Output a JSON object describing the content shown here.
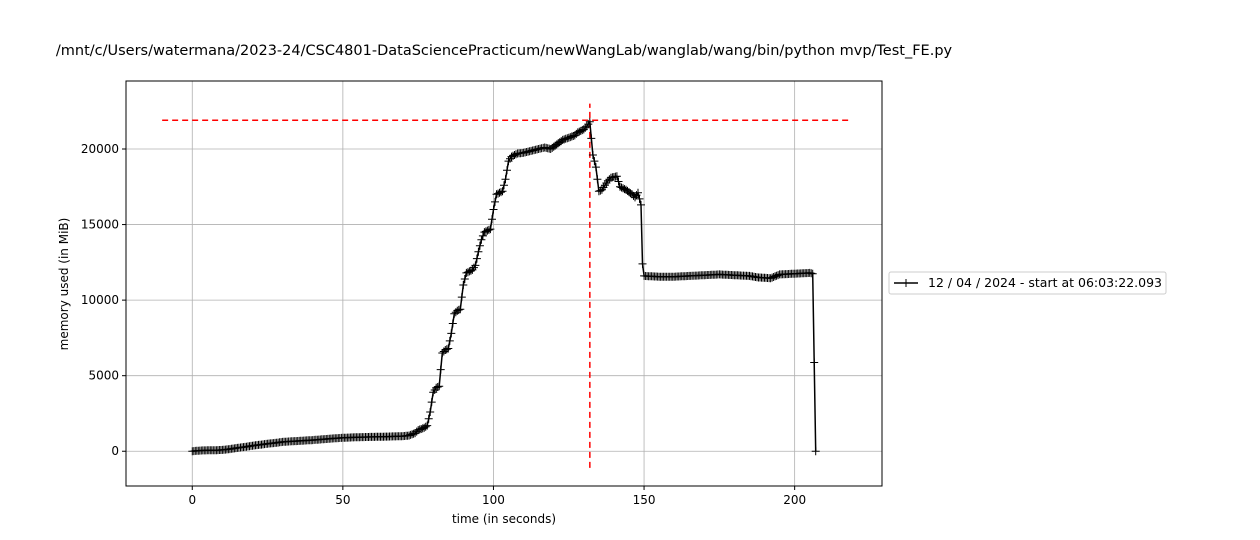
{
  "chart_data": {
    "type": "line",
    "title": "/mnt/c/Users/watermana/2023-24/CSC4801-DataSciencePracticum/newWangLab/wanglab/wang/bin/python mvp/Test_FE.py",
    "xlabel": "time (in seconds)",
    "ylabel": "memory used (in MiB)",
    "xlim": [
      -22,
      229
    ],
    "ylim": [
      -2300,
      24500
    ],
    "xticks": [
      0,
      50,
      100,
      150,
      200
    ],
    "yticks": [
      0,
      5000,
      10000,
      15000,
      20000
    ],
    "xtick_labels": [
      "0",
      "50",
      "100",
      "150",
      "200"
    ],
    "ytick_labels": [
      "0",
      "5000",
      "10000",
      "15000",
      "20000"
    ],
    "grid": true,
    "legend_position": "right, outside plot area",
    "series": [
      {
        "name": "12 / 04 / 2024 - start at 06:03:22.093",
        "color": "#000000",
        "marker": "plus",
        "points": [
          [
            0,
            0
          ],
          [
            1,
            20
          ],
          [
            3,
            50
          ],
          [
            5,
            60
          ],
          [
            8,
            70
          ],
          [
            10,
            90
          ],
          [
            12,
            130
          ],
          [
            15,
            220
          ],
          [
            18,
            300
          ],
          [
            20,
            370
          ],
          [
            23,
            440
          ],
          [
            25,
            500
          ],
          [
            28,
            560
          ],
          [
            30,
            620
          ],
          [
            35,
            680
          ],
          [
            40,
            740
          ],
          [
            45,
            820
          ],
          [
            50,
            890
          ],
          [
            55,
            930
          ],
          [
            60,
            950
          ],
          [
            65,
            970
          ],
          [
            70,
            1000
          ],
          [
            72,
            1040
          ],
          [
            74,
            1200
          ],
          [
            75,
            1400
          ],
          [
            77,
            1550
          ],
          [
            78,
            1700
          ],
          [
            79,
            2600
          ],
          [
            80,
            3900
          ],
          [
            81,
            4200
          ],
          [
            82,
            4300
          ],
          [
            83,
            6500
          ],
          [
            84,
            6700
          ],
          [
            85,
            6800
          ],
          [
            86,
            7800
          ],
          [
            87,
            9100
          ],
          [
            88,
            9300
          ],
          [
            89,
            9400
          ],
          [
            90,
            11000
          ],
          [
            91,
            11800
          ],
          [
            93,
            12000
          ],
          [
            94,
            12300
          ],
          [
            95,
            13200
          ],
          [
            96,
            14000
          ],
          [
            97,
            14500
          ],
          [
            98,
            14600
          ],
          [
            99,
            14700
          ],
          [
            100,
            16000
          ],
          [
            101,
            17000
          ],
          [
            102,
            17100
          ],
          [
            103,
            17200
          ],
          [
            104,
            18000
          ],
          [
            105,
            19200
          ],
          [
            106,
            19500
          ],
          [
            108,
            19700
          ],
          [
            110,
            19750
          ],
          [
            112,
            19850
          ],
          [
            115,
            20000
          ],
          [
            117,
            20100
          ],
          [
            119,
            20000
          ],
          [
            121,
            20300
          ],
          [
            123,
            20600
          ],
          [
            125,
            20750
          ],
          [
            127,
            20900
          ],
          [
            128,
            21100
          ],
          [
            130,
            21300
          ],
          [
            131,
            21500
          ],
          [
            132,
            21800
          ],
          [
            133,
            19600
          ],
          [
            134,
            18800
          ],
          [
            135,
            17200
          ],
          [
            136,
            17300
          ],
          [
            137,
            17600
          ],
          [
            138,
            17900
          ],
          [
            139,
            18100
          ],
          [
            141,
            18200
          ],
          [
            142,
            17500
          ],
          [
            144,
            17300
          ],
          [
            146,
            17000
          ],
          [
            147,
            16800
          ],
          [
            148,
            17100
          ],
          [
            149,
            16300
          ],
          [
            149.5,
            12400
          ],
          [
            150,
            11600
          ],
          [
            155,
            11550
          ],
          [
            160,
            11550
          ],
          [
            165,
            11600
          ],
          [
            170,
            11650
          ],
          [
            175,
            11700
          ],
          [
            180,
            11650
          ],
          [
            185,
            11600
          ],
          [
            188,
            11500
          ],
          [
            192,
            11450
          ],
          [
            195,
            11700
          ],
          [
            200,
            11750
          ],
          [
            205,
            11800
          ],
          [
            206,
            11750
          ],
          [
            207,
            0
          ]
        ]
      }
    ],
    "reference_lines": [
      {
        "orientation": "horizontal",
        "y": 21900,
        "x_from": -10,
        "x_to": 218,
        "color": "#ff0000",
        "style": "dashed"
      },
      {
        "orientation": "vertical",
        "x": 132,
        "y_from": -1100,
        "y_to": 23000,
        "color": "#ff0000",
        "style": "dashed"
      }
    ]
  }
}
